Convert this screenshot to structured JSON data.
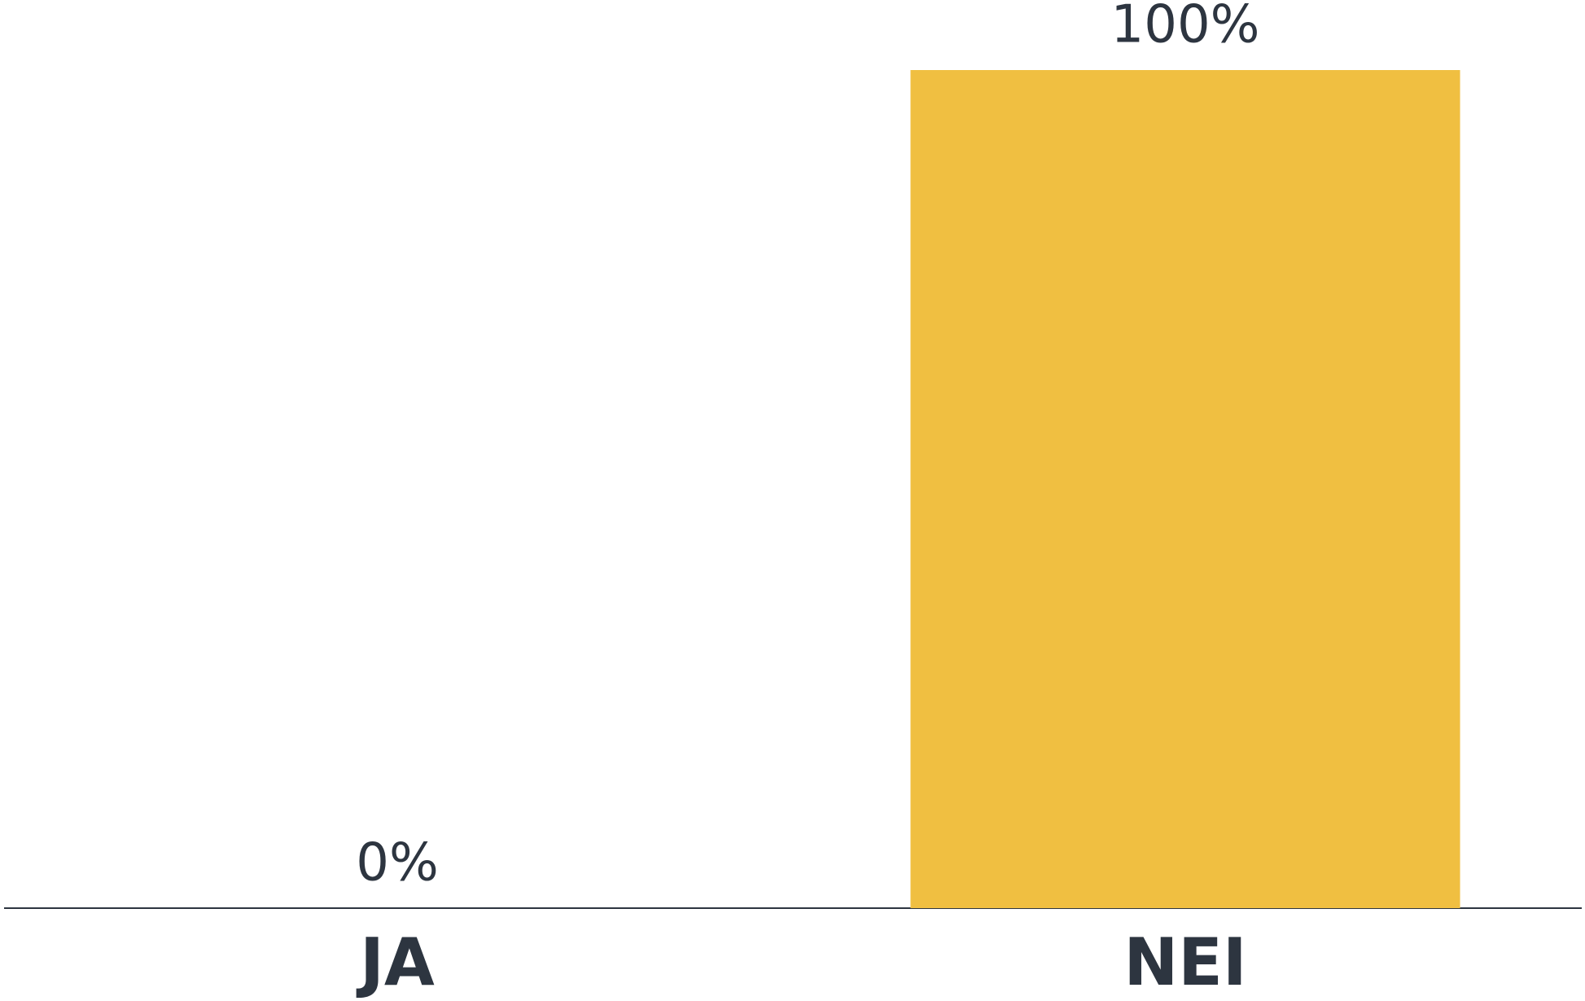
{
  "chart_data": {
    "type": "bar",
    "categories": [
      "JA",
      "NEI"
    ],
    "values": [
      0,
      100
    ],
    "value_labels": [
      "0%",
      "100%"
    ],
    "color": "#f0bf41",
    "ylim": [
      0,
      100
    ]
  }
}
